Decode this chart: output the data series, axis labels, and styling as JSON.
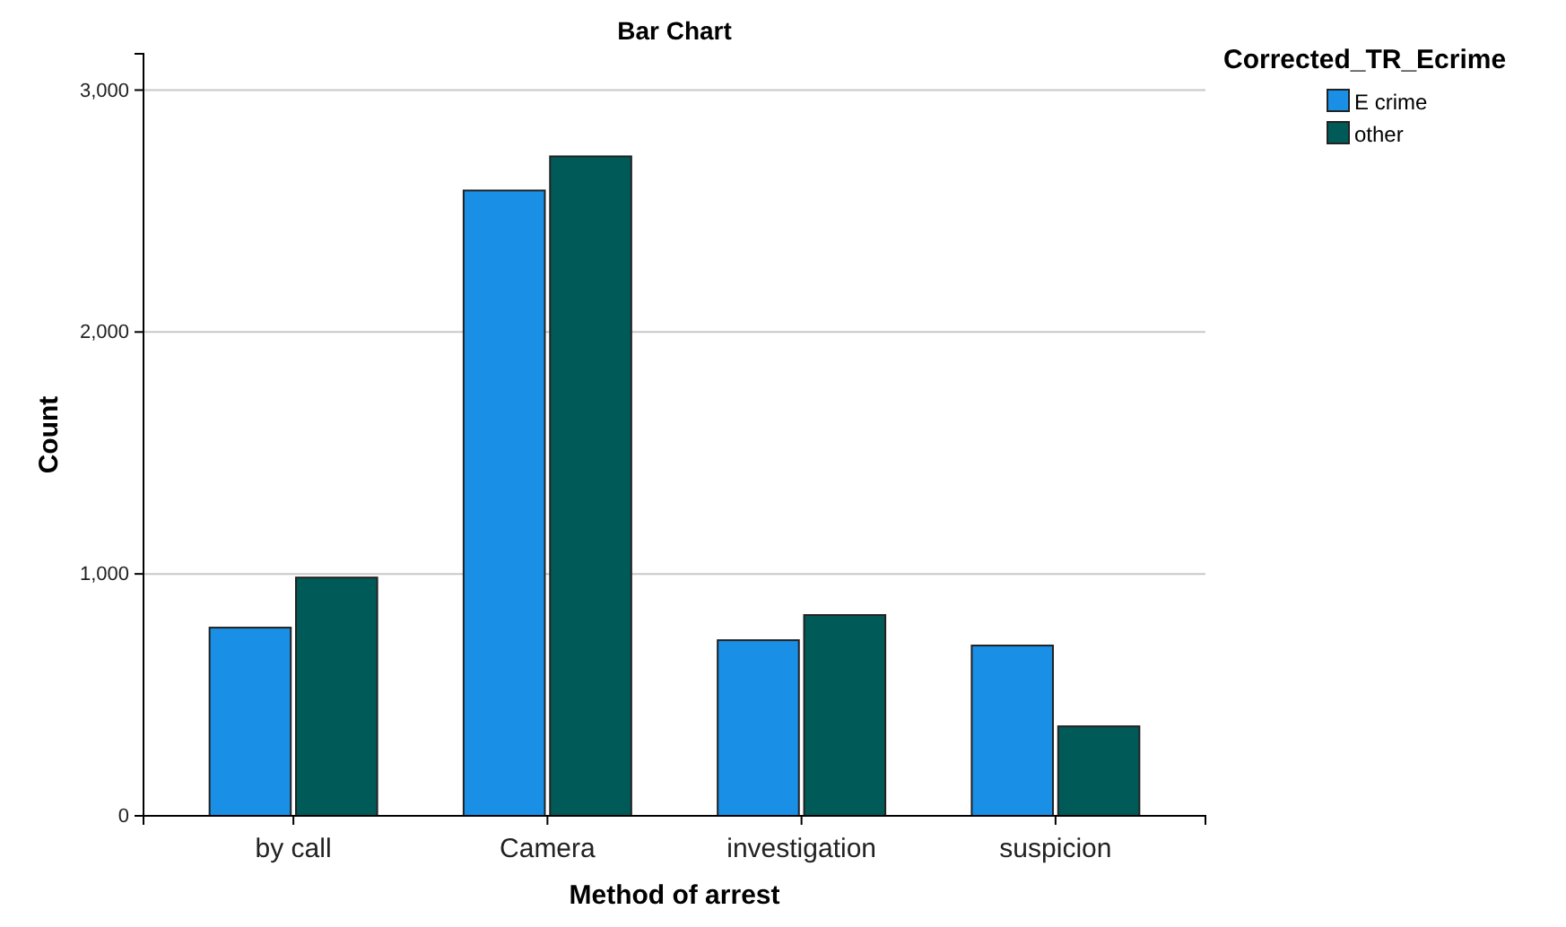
{
  "chart_data": {
    "type": "bar",
    "title": "Bar Chart",
    "xlabel": "Method of arrest",
    "ylabel": "Count",
    "legend_title": "Corrected_TR_Ecrime",
    "categories": [
      "by call",
      "Camera",
      "investigation",
      "suspicion"
    ],
    "series": [
      {
        "name": "E crime",
        "color": "#1a8fe6",
        "values": [
          778,
          2585,
          726,
          704
        ]
      },
      {
        "name": "other",
        "color": "#005a58",
        "values": [
          985,
          2726,
          830,
          370
        ]
      }
    ],
    "ylim": [
      0,
      3150
    ],
    "yticks": [
      {
        "value": 0,
        "label": "0"
      },
      {
        "value": 1000,
        "label": "1,000"
      },
      {
        "value": 2000,
        "label": "2,000"
      },
      {
        "value": 3000,
        "label": "3,000"
      }
    ],
    "grid": "y",
    "legend": "top right"
  }
}
